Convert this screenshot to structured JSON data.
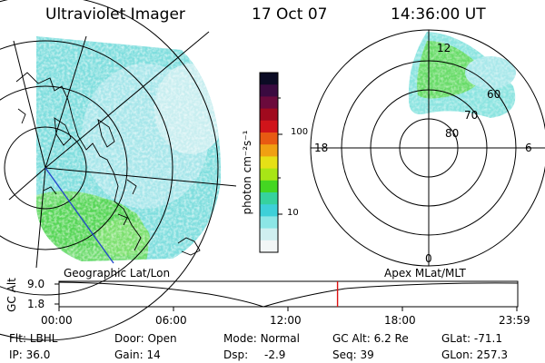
{
  "header": {
    "instrument": "Ultraviolet Imager",
    "date": "17 Oct 07",
    "time": "14:36:00 UT"
  },
  "geo_panel": {
    "label": "Geographic Lat/Lon"
  },
  "polar_panel": {
    "label": "Apex MLat/MLT",
    "mlt_labels": {
      "top": "12",
      "left": "18",
      "right": "6",
      "bottom": "0"
    },
    "lat_labels": [
      "60",
      "70",
      "80"
    ]
  },
  "colorbar": {
    "unit_label": "photon cm⁻²s⁻¹",
    "tick_labels": [
      "100",
      "10"
    ],
    "colors": [
      "#0b0b24",
      "#3a0a40",
      "#6b0a3c",
      "#a00a1e",
      "#d0141a",
      "#e85a12",
      "#f0a012",
      "#e6e016",
      "#a8e616",
      "#44d622",
      "#36d29e",
      "#3ed0d8",
      "#8ce6e6",
      "#cfeff0",
      "#f2f6f6"
    ]
  },
  "altitude_strip": {
    "axis_label": "GC Alt",
    "y_ticks": [
      "9.0",
      "1.8"
    ],
    "x_ticks": [
      "00:00",
      "06:00",
      "12:00",
      "18:00",
      "23:59"
    ],
    "current_time_hours": 14.6
  },
  "status": {
    "filter": {
      "label": "Flt:",
      "value": "LBHL"
    },
    "ip": {
      "label": "IP:",
      "value": "36.0"
    },
    "door": {
      "label": "Door:",
      "value": "Open"
    },
    "gain": {
      "label": "Gain:",
      "value": "14"
    },
    "mode": {
      "label": "Mode:",
      "value": "Normal"
    },
    "dsp": {
      "label": "Dsp:",
      "value": "-2.9"
    },
    "gc_alt": {
      "label": "GC Alt:",
      "value": "6.2 Re"
    },
    "seq": {
      "label": "Seq:",
      "value": "39"
    },
    "glat": {
      "label": "GLat:",
      "value": "-71.1"
    },
    "glon": {
      "label": "GLon:",
      "value": "257.3"
    }
  }
}
